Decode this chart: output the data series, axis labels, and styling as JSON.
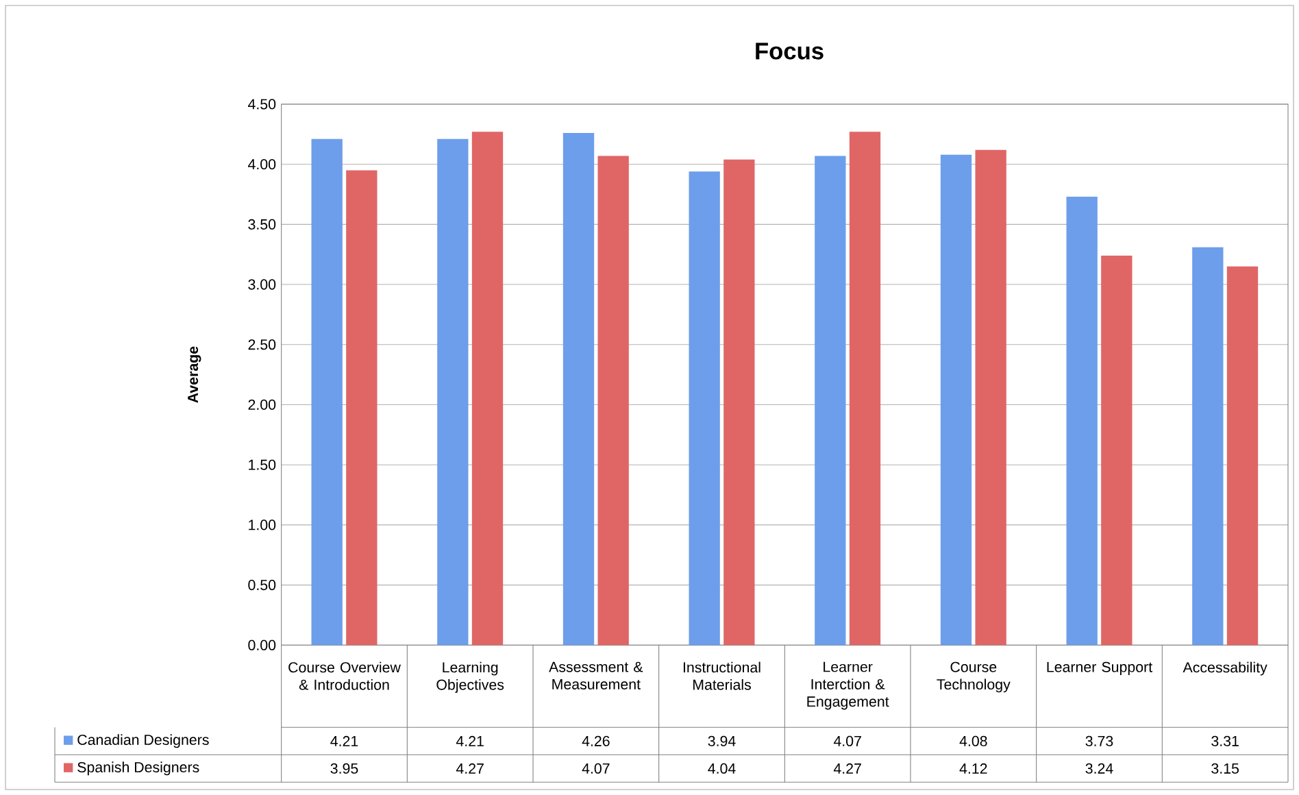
{
  "chart_data": {
    "type": "bar",
    "title": "Focus",
    "ylabel": "Average",
    "categories": [
      "Course Overview & Introduction",
      "Learning Objectives",
      "Assessment & Measurement",
      "Instructional Materials",
      "Learner Interction & Engagement",
      "Course Technology",
      "Learner Support",
      "Accessability"
    ],
    "series": [
      {
        "name": "Canadian Designers",
        "color": "#6d9eeb",
        "values": [
          4.21,
          4.21,
          4.26,
          3.94,
          4.07,
          4.08,
          3.73,
          3.31
        ]
      },
      {
        "name": "Spanish Designers",
        "color": "#e06666",
        "values": [
          3.95,
          4.27,
          4.07,
          4.04,
          4.27,
          4.12,
          3.24,
          3.15
        ]
      }
    ],
    "ylim": [
      0,
      4.5
    ],
    "yticks": [
      {
        "value": 0,
        "label": "0.00"
      },
      {
        "value": 0.5,
        "label": "0.50"
      },
      {
        "value": 1,
        "label": "1.00"
      },
      {
        "value": 1.5,
        "label": "1.50"
      },
      {
        "value": 2,
        "label": "2.00"
      },
      {
        "value": 2.5,
        "label": "2.50"
      },
      {
        "value": 3,
        "label": "3.00"
      },
      {
        "value": 3.5,
        "label": "3.50"
      },
      {
        "value": 4,
        "label": "4.00"
      },
      {
        "value": 4.5,
        "label": "4.50"
      }
    ],
    "grid": "y",
    "legend": "bottom",
    "data_labels": true
  }
}
